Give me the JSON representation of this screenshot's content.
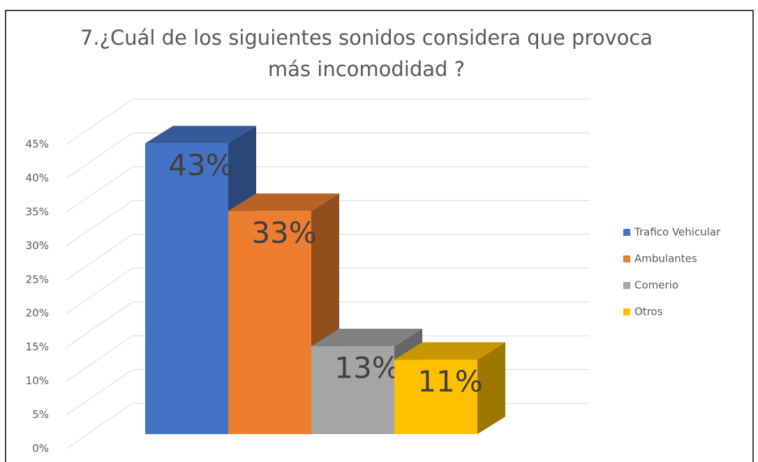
{
  "chart_data": {
    "type": "bar",
    "title": "7.¿Cuál de los siguientes sonidos considera que provoca más incomodidad ?",
    "ylim": [
      0,
      45
    ],
    "yticks": [
      {
        "value": 0,
        "label": "0%"
      },
      {
        "value": 5,
        "label": "5%"
      },
      {
        "value": 10,
        "label": "10%"
      },
      {
        "value": 15,
        "label": "15%"
      },
      {
        "value": 20,
        "label": "20%"
      },
      {
        "value": 25,
        "label": "25%"
      },
      {
        "value": 30,
        "label": "30%"
      },
      {
        "value": 35,
        "label": "35%"
      },
      {
        "value": 40,
        "label": "40%"
      },
      {
        "value": 45,
        "label": "45%"
      }
    ],
    "grid": true,
    "legend": "right",
    "series": [
      {
        "name": "Trafico Vehicular",
        "color": "#4472c4",
        "values": [
          43
        ],
        "value_labels": [
          "43%"
        ]
      },
      {
        "name": "Ambulantes",
        "color": "#ed7d31",
        "values": [
          33
        ],
        "value_labels": [
          "33%"
        ]
      },
      {
        "name": "Comerio",
        "color": "#a5a5a5",
        "values": [
          13
        ],
        "value_labels": [
          "13%"
        ]
      },
      {
        "name": "Otros",
        "color": "#ffc000",
        "values": [
          11
        ],
        "value_labels": [
          "11%"
        ]
      }
    ]
  }
}
